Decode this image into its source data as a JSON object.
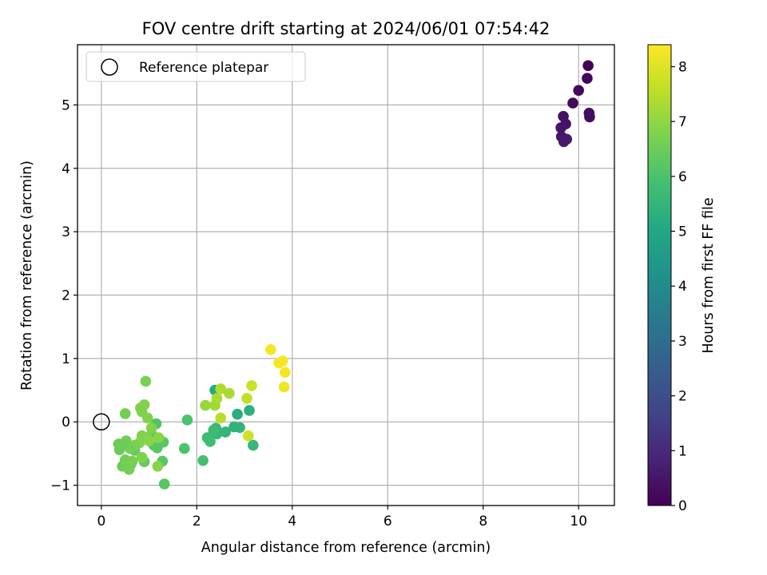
{
  "chart_data": {
    "type": "scatter",
    "title": "FOV centre drift starting at 2024/06/01 07:54:42",
    "xlabel": "Angular distance from reference (arcmin)",
    "ylabel": "Rotation from reference (arcmin)",
    "xlim": [
      -0.5,
      10.75
    ],
    "ylim": [
      -1.32,
      5.95
    ],
    "xticks": [
      0,
      2,
      4,
      6,
      8,
      10
    ],
    "yticks": [
      -1,
      0,
      1,
      2,
      3,
      4,
      5
    ],
    "xtick_labels": [
      "0",
      "2",
      "4",
      "6",
      "8",
      "10"
    ],
    "ytick_labels": [
      "−1",
      "0",
      "1",
      "2",
      "3",
      "4",
      "5"
    ],
    "grid": true,
    "legend": {
      "placement": "top-left",
      "entries": [
        "Reference platepar"
      ]
    },
    "reference_point": {
      "x": 0,
      "y": 0
    },
    "colorbar": {
      "label": "Hours from first FF file",
      "colormap": "viridis",
      "range": [
        0,
        8.4
      ],
      "ticks": [
        0,
        1,
        2,
        3,
        4,
        5,
        6,
        7,
        8
      ],
      "tick_labels": [
        "0",
        "1",
        "2",
        "3",
        "4",
        "5",
        "6",
        "7",
        "8"
      ]
    },
    "points": [
      {
        "x": 10.2,
        "y": 5.62,
        "c": 0.05
      },
      {
        "x": 10.18,
        "y": 5.42,
        "c": 0.1
      },
      {
        "x": 10.0,
        "y": 5.23,
        "c": 0.15
      },
      {
        "x": 9.88,
        "y": 5.03,
        "c": 0.2
      },
      {
        "x": 10.22,
        "y": 4.87,
        "c": 0.25
      },
      {
        "x": 10.23,
        "y": 4.81,
        "c": 0.3
      },
      {
        "x": 9.68,
        "y": 4.82,
        "c": 0.35
      },
      {
        "x": 9.73,
        "y": 4.7,
        "c": 0.4
      },
      {
        "x": 9.63,
        "y": 4.64,
        "c": 0.45
      },
      {
        "x": 9.64,
        "y": 4.5,
        "c": 0.5
      },
      {
        "x": 9.75,
        "y": 4.46,
        "c": 0.55
      },
      {
        "x": 9.69,
        "y": 4.42,
        "c": 0.6
      },
      {
        "x": 2.38,
        "y": 0.5,
        "c": 5.1
      },
      {
        "x": 2.85,
        "y": 0.12,
        "c": 5.2
      },
      {
        "x": 3.1,
        "y": 0.18,
        "c": 5.3
      },
      {
        "x": 2.9,
        "y": -0.09,
        "c": 5.4
      },
      {
        "x": 2.78,
        "y": -0.08,
        "c": 5.4
      },
      {
        "x": 2.6,
        "y": -0.16,
        "c": 5.5
      },
      {
        "x": 2.4,
        "y": -0.1,
        "c": 5.5
      },
      {
        "x": 2.42,
        "y": -0.19,
        "c": 5.6
      },
      {
        "x": 2.22,
        "y": -0.25,
        "c": 5.7
      },
      {
        "x": 2.28,
        "y": -0.31,
        "c": 5.8
      },
      {
        "x": 3.18,
        "y": -0.37,
        "c": 5.6
      },
      {
        "x": 2.13,
        "y": -0.61,
        "c": 5.9
      },
      {
        "x": 1.8,
        "y": 0.03,
        "c": 6.0
      },
      {
        "x": 1.74,
        "y": -0.42,
        "c": 6.0
      },
      {
        "x": 2.35,
        "y": -0.13,
        "c": 5.7
      },
      {
        "x": 1.15,
        "y": -0.03,
        "c": 6.1
      },
      {
        "x": 1.05,
        "y": -0.2,
        "c": 6.2
      },
      {
        "x": 1.2,
        "y": -0.28,
        "c": 6.2
      },
      {
        "x": 1.3,
        "y": -0.32,
        "c": 6.2
      },
      {
        "x": 1.1,
        "y": -0.37,
        "c": 6.2
      },
      {
        "x": 1.17,
        "y": -0.41,
        "c": 6.2
      },
      {
        "x": 1.28,
        "y": -0.62,
        "c": 6.2
      },
      {
        "x": 1.32,
        "y": -0.98,
        "c": 6.2
      },
      {
        "x": 0.9,
        "y": -0.63,
        "c": 6.4
      },
      {
        "x": 0.7,
        "y": -0.45,
        "c": 6.4
      },
      {
        "x": 0.55,
        "y": -0.7,
        "c": 6.5
      },
      {
        "x": 0.62,
        "y": -0.67,
        "c": 6.5
      },
      {
        "x": 0.44,
        "y": -0.7,
        "c": 6.5
      },
      {
        "x": 0.5,
        "y": 0.13,
        "c": 6.6
      },
      {
        "x": 0.93,
        "y": 0.64,
        "c": 6.7
      },
      {
        "x": 0.9,
        "y": 0.27,
        "c": 6.8
      },
      {
        "x": 0.82,
        "y": 0.22,
        "c": 6.8
      },
      {
        "x": 0.85,
        "y": 0.16,
        "c": 6.8
      },
      {
        "x": 0.97,
        "y": 0.06,
        "c": 6.8
      },
      {
        "x": 1.05,
        "y": -0.1,
        "c": 6.8
      },
      {
        "x": 0.95,
        "y": -0.25,
        "c": 6.8
      },
      {
        "x": 0.85,
        "y": -0.22,
        "c": 6.8
      },
      {
        "x": 0.8,
        "y": -0.33,
        "c": 6.8
      },
      {
        "x": 0.7,
        "y": -0.37,
        "c": 6.7
      },
      {
        "x": 0.6,
        "y": -0.42,
        "c": 6.6
      },
      {
        "x": 0.52,
        "y": -0.3,
        "c": 6.6
      },
      {
        "x": 0.45,
        "y": -0.35,
        "c": 6.5
      },
      {
        "x": 0.36,
        "y": -0.35,
        "c": 6.5
      },
      {
        "x": 0.38,
        "y": -0.44,
        "c": 6.5
      },
      {
        "x": 0.5,
        "y": -0.6,
        "c": 6.6
      },
      {
        "x": 0.58,
        "y": -0.75,
        "c": 6.6
      },
      {
        "x": 0.65,
        "y": -0.62,
        "c": 6.7
      },
      {
        "x": 0.85,
        "y": -0.56,
        "c": 6.8
      },
      {
        "x": 1.18,
        "y": -0.7,
        "c": 6.9
      },
      {
        "x": 1.0,
        "y": -0.3,
        "c": 6.9
      },
      {
        "x": 1.2,
        "y": -0.25,
        "c": 6.9
      },
      {
        "x": 2.18,
        "y": 0.26,
        "c": 7.1
      },
      {
        "x": 2.38,
        "y": 0.26,
        "c": 7.2
      },
      {
        "x": 2.42,
        "y": 0.37,
        "c": 7.3
      },
      {
        "x": 2.5,
        "y": 0.52,
        "c": 7.4
      },
      {
        "x": 2.68,
        "y": 0.45,
        "c": 7.3
      },
      {
        "x": 2.5,
        "y": 0.06,
        "c": 7.5
      },
      {
        "x": 3.05,
        "y": 0.37,
        "c": 7.6
      },
      {
        "x": 3.15,
        "y": 0.57,
        "c": 7.7
      },
      {
        "x": 3.08,
        "y": -0.22,
        "c": 7.8
      },
      {
        "x": 3.55,
        "y": 1.14,
        "c": 8.3
      },
      {
        "x": 3.72,
        "y": 0.93,
        "c": 8.3
      },
      {
        "x": 3.8,
        "y": 0.96,
        "c": 8.3
      },
      {
        "x": 3.85,
        "y": 0.78,
        "c": 8.3
      },
      {
        "x": 3.83,
        "y": 0.55,
        "c": 8.2
      }
    ]
  }
}
